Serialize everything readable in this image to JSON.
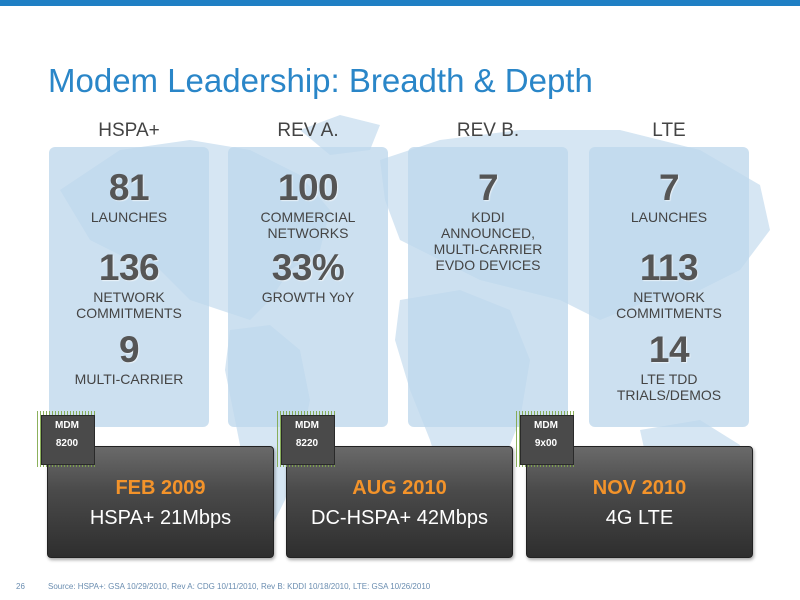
{
  "title": "Modem Leadership: Breadth & Depth",
  "columns": [
    {
      "heading": "HSPA+",
      "stats": [
        {
          "num": "81",
          "label": "LAUNCHES"
        },
        {
          "num": "136",
          "label": "NETWORK\nCOMMITMENTS"
        },
        {
          "num": "9",
          "label": "MULTI-CARRIER"
        }
      ]
    },
    {
      "heading": "REV A.",
      "stats": [
        {
          "num": "100",
          "label": "COMMERCIAL\nNETWORKS"
        },
        {
          "num": "33%",
          "label": "GROWTH YoY"
        }
      ]
    },
    {
      "heading": "REV B.",
      "stats": [
        {
          "num": "7",
          "label": "KDDI\nANNOUNCED,\nMULTI-CARRIER\nEVDO  DEVICES"
        }
      ]
    },
    {
      "heading": "LTE",
      "stats": [
        {
          "num": "7",
          "label": "LAUNCHES"
        },
        {
          "num": "113",
          "label": "NETWORK\nCOMMITMENTS"
        },
        {
          "num": "14",
          "label": "LTE TDD\nTRIALS/DEMOS"
        }
      ]
    }
  ],
  "products": [
    {
      "chip_line1": "MDM",
      "chip_line2": "8200",
      "date": "FEB 2009",
      "spec": "HSPA+ 21Mbps"
    },
    {
      "chip_line1": "MDM",
      "chip_line2": "8220",
      "date": "AUG 2010",
      "spec": "DC-HSPA+ 42Mbps"
    },
    {
      "chip_line1": "MDM",
      "chip_line2": "9x00",
      "date": "NOV 2010",
      "spec": "4G LTE"
    }
  ],
  "footer": {
    "page_number": "26",
    "source": "Source: HSPA+: GSA 10/29/2010, Rev A: CDG 10/11/2010, Rev B: KDDI 10/18/2010, LTE: GSA 10/26/2010"
  },
  "colors": {
    "accent": "#2a86c8",
    "date": "#f3932a",
    "card": "#bed7ec"
  }
}
